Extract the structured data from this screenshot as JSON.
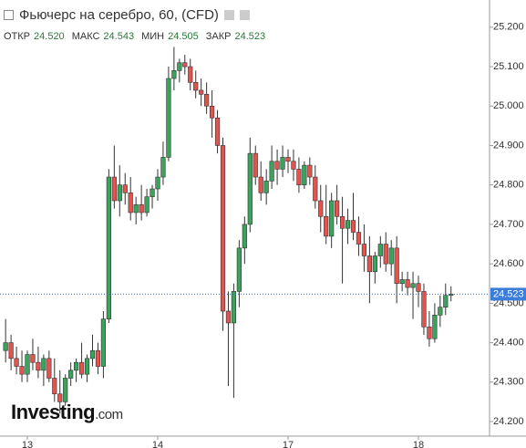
{
  "header": {
    "title": "Фьючерс на серебро, 60, (CFD)",
    "items": [
      {
        "label": "ОТКР",
        "value": "24.520"
      },
      {
        "label": "МАКС",
        "value": "24.543"
      },
      {
        "label": "МИН",
        "value": "24.505"
      },
      {
        "label": "ЗАКР",
        "value": "24.523"
      }
    ]
  },
  "logo": {
    "name": "Investing",
    "suffix": ".com"
  },
  "chart_data": {
    "type": "candlestick",
    "categories": [
      null,
      null,
      null,
      null,
      "13",
      null,
      null,
      null,
      null,
      null,
      null,
      null,
      null,
      null,
      null,
      null,
      null,
      null,
      null,
      null,
      null,
      null,
      null,
      null,
      null,
      null,
      null,
      null,
      "14",
      null,
      null,
      null,
      null,
      null,
      null,
      null,
      null,
      null,
      null,
      null,
      null,
      null,
      null,
      null,
      null,
      null,
      null,
      null,
      null,
      null,
      null,
      null,
      "17",
      null,
      null,
      null,
      null,
      null,
      null,
      null,
      null,
      null,
      null,
      null,
      null,
      null,
      null,
      null,
      null,
      null,
      null,
      null,
      null,
      null,
      null,
      null,
      "18",
      null,
      null,
      null,
      null,
      null,
      null
    ],
    "open": [
      24.38,
      24.4,
      24.36,
      24.34,
      24.32,
      24.37,
      24.35,
      24.33,
      24.36,
      24.31,
      24.27,
      24.25,
      24.31,
      24.33,
      24.35,
      24.32,
      24.36,
      24.38,
      24.34,
      24.46,
      24.82,
      24.76,
      24.8,
      24.78,
      24.73,
      24.75,
      24.73,
      24.77,
      24.79,
      24.82,
      24.87,
      25.07,
      25.09,
      25.11,
      25.1,
      25.06,
      25.04,
      25.03,
      25.0,
      24.97,
      24.9,
      24.48,
      24.45,
      24.53,
      24.64,
      24.7,
      24.88,
      24.82,
      24.78,
      24.81,
      24.86,
      24.84,
      24.87,
      24.86,
      24.84,
      24.8,
      24.85,
      24.82,
      24.76,
      24.72,
      24.67,
      24.76,
      24.72,
      24.69,
      24.71,
      24.68,
      24.65,
      24.62,
      24.58,
      24.62,
      24.65,
      24.6,
      24.64,
      24.55,
      24.56,
      24.54,
      24.55,
      24.53,
      24.44,
      24.41,
      24.47,
      24.49,
      24.52
    ],
    "high": [
      24.46,
      24.42,
      24.39,
      24.38,
      24.38,
      24.41,
      24.39,
      24.37,
      24.38,
      24.36,
      24.33,
      24.32,
      24.35,
      24.36,
      24.4,
      24.37,
      24.42,
      24.4,
      24.48,
      24.84,
      24.9,
      24.85,
      24.83,
      24.82,
      24.77,
      24.8,
      24.79,
      24.8,
      24.84,
      24.91,
      25.1,
      25.15,
      25.12,
      25.13,
      25.12,
      25.09,
      25.07,
      25.06,
      25.04,
      24.99,
      24.92,
      24.53,
      24.55,
      24.66,
      24.72,
      24.92,
      24.9,
      24.86,
      24.84,
      24.9,
      24.89,
      24.9,
      24.89,
      24.89,
      24.87,
      24.86,
      24.87,
      24.85,
      24.8,
      24.8,
      24.78,
      24.8,
      24.77,
      24.74,
      24.78,
      24.72,
      24.7,
      24.67,
      24.63,
      24.67,
      24.68,
      24.66,
      24.67,
      24.58,
      24.58,
      24.58,
      24.57,
      24.55,
      24.48,
      24.5,
      24.52,
      24.55,
      24.543
    ],
    "low": [
      24.35,
      24.33,
      24.32,
      24.3,
      24.3,
      24.33,
      24.31,
      24.29,
      24.3,
      24.25,
      24.22,
      24.24,
      24.29,
      24.3,
      24.31,
      24.3,
      24.34,
      24.32,
      24.31,
      24.45,
      24.74,
      24.72,
      24.75,
      24.71,
      24.7,
      24.71,
      24.72,
      24.74,
      24.76,
      24.8,
      24.86,
      25.04,
      25.06,
      25.08,
      25.04,
      25.02,
      25.0,
      24.98,
      24.92,
      24.88,
      24.43,
      24.29,
      24.26,
      24.49,
      24.6,
      24.68,
      24.8,
      24.76,
      24.75,
      24.79,
      24.8,
      24.82,
      24.83,
      24.81,
      24.78,
      24.79,
      24.8,
      24.74,
      24.68,
      24.65,
      24.64,
      24.7,
      24.55,
      24.65,
      24.66,
      24.62,
      24.58,
      24.5,
      24.55,
      24.59,
      24.58,
      24.57,
      24.5,
      24.53,
      24.52,
      24.46,
      24.49,
      24.42,
      24.39,
      24.4,
      24.44,
      24.47,
      24.505
    ],
    "close": [
      24.4,
      24.36,
      24.34,
      24.32,
      24.37,
      24.35,
      24.33,
      24.36,
      24.31,
      24.27,
      24.25,
      24.31,
      24.33,
      24.35,
      24.32,
      24.36,
      24.38,
      24.34,
      24.46,
      24.82,
      24.76,
      24.8,
      24.78,
      24.73,
      24.75,
      24.73,
      24.77,
      24.79,
      24.82,
      24.87,
      25.07,
      25.09,
      25.11,
      25.1,
      25.06,
      25.04,
      25.03,
      25.0,
      24.97,
      24.9,
      24.48,
      24.45,
      24.53,
      24.64,
      24.7,
      24.88,
      24.82,
      24.78,
      24.81,
      24.86,
      24.84,
      24.87,
      24.86,
      24.84,
      24.8,
      24.85,
      24.82,
      24.76,
      24.72,
      24.67,
      24.76,
      24.72,
      24.69,
      24.71,
      24.68,
      24.65,
      24.62,
      24.58,
      24.62,
      24.65,
      24.6,
      24.64,
      24.55,
      24.56,
      24.54,
      24.55,
      24.53,
      24.44,
      24.41,
      24.47,
      24.49,
      24.52,
      24.523
    ],
    "last_price_label": "24.523",
    "up_color": "#3aa35c",
    "down_color": "#e2554f",
    "ylim": [
      24.163,
      25.269
    ],
    "yticks": [
      {
        "value": 24.2,
        "label": "24.200"
      },
      {
        "value": 24.3,
        "label": "24.300"
      },
      {
        "value": 24.4,
        "label": "24.400"
      },
      {
        "value": 24.5,
        "label": "24.500"
      },
      {
        "value": 24.6,
        "label": "24.600"
      },
      {
        "value": 24.7,
        "label": "24.700"
      },
      {
        "value": 24.8,
        "label": "24.800"
      },
      {
        "value": 24.9,
        "label": "24.900"
      },
      {
        "value": 25.0,
        "label": "25.000"
      },
      {
        "value": 25.1,
        "label": "25.100"
      },
      {
        "value": 25.2,
        "label": "25.200"
      }
    ]
  }
}
